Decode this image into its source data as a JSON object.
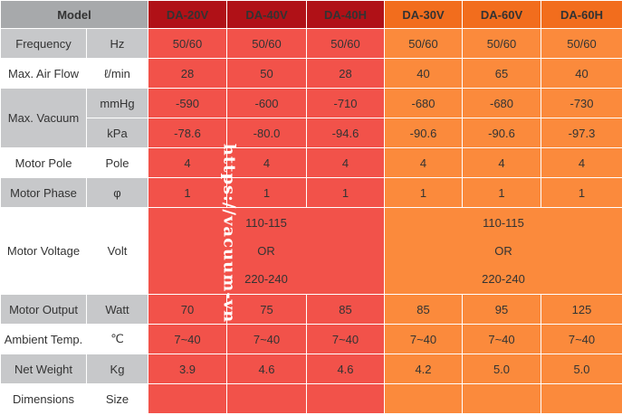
{
  "header": {
    "model_label": "Model",
    "models": [
      {
        "name": "DA-20V",
        "group": "red"
      },
      {
        "name": "DA-40V",
        "group": "red"
      },
      {
        "name": "DA-40H",
        "group": "red"
      },
      {
        "name": "DA-30V",
        "group": "orange"
      },
      {
        "name": "DA-60V",
        "group": "orange"
      },
      {
        "name": "DA-60H",
        "group": "orange"
      }
    ]
  },
  "rows": {
    "frequency": {
      "label": "Frequency",
      "unit": "Hz",
      "values": [
        "50/60",
        "50/60",
        "50/60",
        "50/60",
        "50/60",
        "50/60"
      ]
    },
    "air_flow": {
      "label": "Max. Air Flow",
      "unit": "ℓ/min",
      "values": [
        "28",
        "50",
        "28",
        "40",
        "65",
        "40"
      ]
    },
    "vacuum": {
      "label": "Max. Vacuum",
      "mmhg": {
        "unit": "mmHg",
        "values": [
          "-590",
          "-600",
          "-710",
          "-680",
          "-680",
          "-730"
        ]
      },
      "kpa": {
        "unit": "kPa",
        "values": [
          "-78.6",
          "-80.0",
          "-94.6",
          "-90.6",
          "-90.6",
          "-97.3"
        ]
      }
    },
    "motor_pole": {
      "label": "Motor Pole",
      "unit": "Pole",
      "values": [
        "4",
        "4",
        "4",
        "4",
        "4",
        "4"
      ]
    },
    "motor_phase": {
      "label": "Motor Phase",
      "unit": "φ",
      "values": [
        "1",
        "1",
        "1",
        "1",
        "1",
        "1"
      ]
    },
    "motor_voltage": {
      "label": "Motor Voltage",
      "unit": "Volt",
      "red_group": [
        "110-115",
        "OR",
        "220-240"
      ],
      "orange_group": [
        "110-115",
        "OR",
        "220-240"
      ]
    },
    "motor_output": {
      "label": "Motor Output",
      "unit": "Watt",
      "values": [
        "70",
        "75",
        "85",
        "85",
        "95",
        "125"
      ]
    },
    "ambient_temp": {
      "label": "Ambient Temp.",
      "unit": "℃",
      "values": [
        "7~40",
        "7~40",
        "7~40",
        "7~40",
        "7~40",
        "7~40"
      ]
    },
    "net_weight": {
      "label": "Net Weight",
      "unit": "Kg",
      "values": [
        "3.9",
        "4.6",
        "4.6",
        "4.2",
        "5.0",
        "5.0"
      ]
    },
    "dimensions": {
      "label": "Dimensions",
      "unit": "Size",
      "values": [
        "",
        "",
        "",
        "",
        "",
        ""
      ]
    }
  },
  "watermark": "https://vacuum-vn",
  "colors": {
    "header_gray": "#a7a9ab",
    "header_red": "#b01117",
    "header_orange": "#f26d1d",
    "cell_red": "#f2524a",
    "cell_orange": "#fb8a3c",
    "label_gray": "#c7c8ca"
  }
}
